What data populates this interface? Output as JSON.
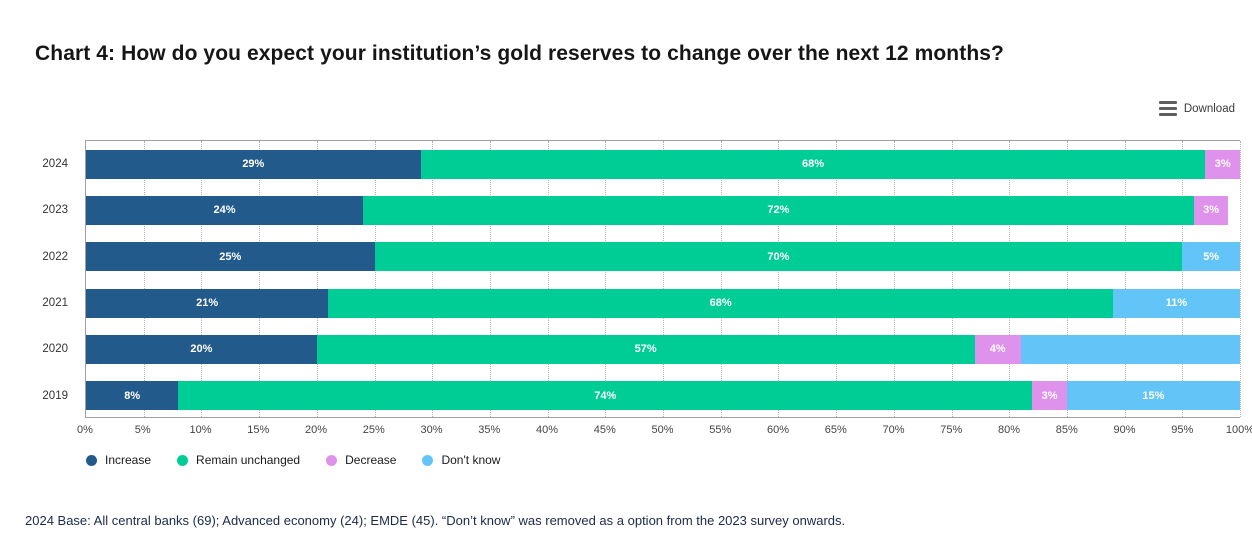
{
  "page": {
    "title": "Chart 4: How do you expect your institution’s gold reserves to change over the next 12 months?",
    "download_label": "Download",
    "footnote": "2024 Base: All central banks (69); Advanced economy (24); EMDE (45). “Don’t know” was removed as a option from the 2023 survey onwards."
  },
  "chart_data": {
    "type": "bar",
    "orientation": "horizontal",
    "stacked": true,
    "title": "Chart 4: How do you expect your institution’s gold reserves to change over the next 12 months?",
    "categories": [
      "2024",
      "2023",
      "2022",
      "2021",
      "2020",
      "2019"
    ],
    "series": [
      {
        "name": "Increase",
        "color": "#235a8c",
        "values": [
          29,
          24,
          25,
          21,
          20,
          8
        ]
      },
      {
        "name": "Remain unchanged",
        "color": "#00cc96",
        "values": [
          68,
          72,
          70,
          68,
          57,
          74
        ]
      },
      {
        "name": "Decrease",
        "color": "#de92ec",
        "values": [
          3,
          3,
          0,
          0,
          4,
          3
        ]
      },
      {
        "name": "Don't know",
        "color": "#63c5f7",
        "values": [
          0,
          0,
          5,
          11,
          19,
          15
        ]
      }
    ],
    "bar_label_format": "{value}%",
    "hidden_bar_labels": [
      {
        "category": "2020",
        "series": "Don't know",
        "value": 19
      }
    ],
    "xlim": [
      0,
      100
    ],
    "x_ticks": [
      0,
      5,
      10,
      15,
      20,
      25,
      30,
      35,
      40,
      45,
      50,
      55,
      60,
      65,
      70,
      75,
      80,
      85,
      90,
      95,
      100
    ],
    "tick_suffix": "%",
    "grid": "vertical-dotted",
    "legend_position": "bottom"
  }
}
